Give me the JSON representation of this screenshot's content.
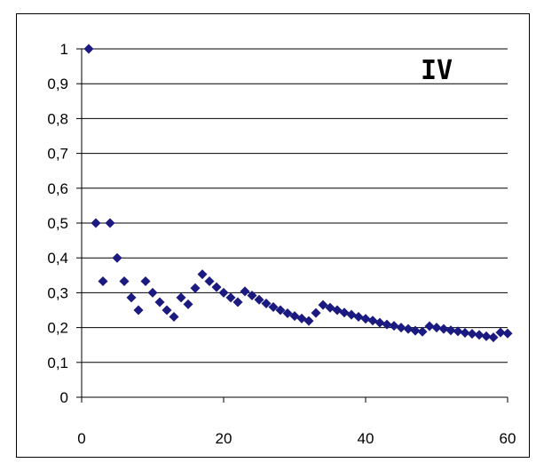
{
  "chart_data": {
    "type": "scatter",
    "title": "",
    "xlabel": "",
    "ylabel": "",
    "xlim": [
      0,
      60
    ],
    "ylim": [
      0,
      1
    ],
    "xticks": [
      0,
      20,
      40,
      60
    ],
    "yticks": [
      0,
      0.1,
      0.2,
      0.3,
      0.4,
      0.5,
      0.6,
      0.7,
      0.8,
      0.9,
      1
    ],
    "xtick_labels": [
      "0",
      "20",
      "40",
      "60"
    ],
    "ytick_labels": [
      "0",
      "0,1",
      "0,2",
      "0,3",
      "0,4",
      "0,5",
      "0,6",
      "0,7",
      "0,8",
      "0,9",
      "1"
    ],
    "grid": "horizontal",
    "annotation": "IV",
    "marker": "diamond",
    "colors": {
      "marker": "#1a1a80",
      "grid": "#000000",
      "axis": "#000000"
    },
    "series": [
      {
        "points": [
          [
            1,
            1.0
          ],
          [
            2,
            0.5
          ],
          [
            3,
            0.333
          ],
          [
            4,
            0.5
          ],
          [
            5,
            0.4
          ],
          [
            6,
            0.333
          ],
          [
            7,
            0.286
          ],
          [
            8,
            0.25
          ],
          [
            9,
            0.333
          ],
          [
            10,
            0.3
          ],
          [
            11,
            0.273
          ],
          [
            12,
            0.25
          ],
          [
            13,
            0.231
          ],
          [
            14,
            0.286
          ],
          [
            15,
            0.267
          ],
          [
            16,
            0.313
          ],
          [
            17,
            0.353
          ],
          [
            18,
            0.333
          ],
          [
            19,
            0.316
          ],
          [
            20,
            0.3
          ],
          [
            21,
            0.286
          ],
          [
            22,
            0.273
          ],
          [
            23,
            0.304
          ],
          [
            24,
            0.292
          ],
          [
            25,
            0.28
          ],
          [
            26,
            0.269
          ],
          [
            27,
            0.259
          ],
          [
            28,
            0.25
          ],
          [
            29,
            0.241
          ],
          [
            30,
            0.233
          ],
          [
            31,
            0.226
          ],
          [
            32,
            0.219
          ],
          [
            33,
            0.242
          ],
          [
            34,
            0.265
          ],
          [
            35,
            0.257
          ],
          [
            36,
            0.25
          ],
          [
            37,
            0.243
          ],
          [
            38,
            0.237
          ],
          [
            39,
            0.231
          ],
          [
            40,
            0.225
          ],
          [
            41,
            0.22
          ],
          [
            42,
            0.214
          ],
          [
            43,
            0.209
          ],
          [
            44,
            0.205
          ],
          [
            45,
            0.2
          ],
          [
            46,
            0.196
          ],
          [
            47,
            0.191
          ],
          [
            48,
            0.188
          ],
          [
            49,
            0.204
          ],
          [
            50,
            0.2
          ],
          [
            51,
            0.196
          ],
          [
            52,
            0.192
          ],
          [
            53,
            0.189
          ],
          [
            54,
            0.185
          ],
          [
            55,
            0.182
          ],
          [
            56,
            0.179
          ],
          [
            57,
            0.175
          ],
          [
            58,
            0.172
          ],
          [
            59,
            0.186
          ],
          [
            60,
            0.183
          ]
        ]
      }
    ]
  }
}
